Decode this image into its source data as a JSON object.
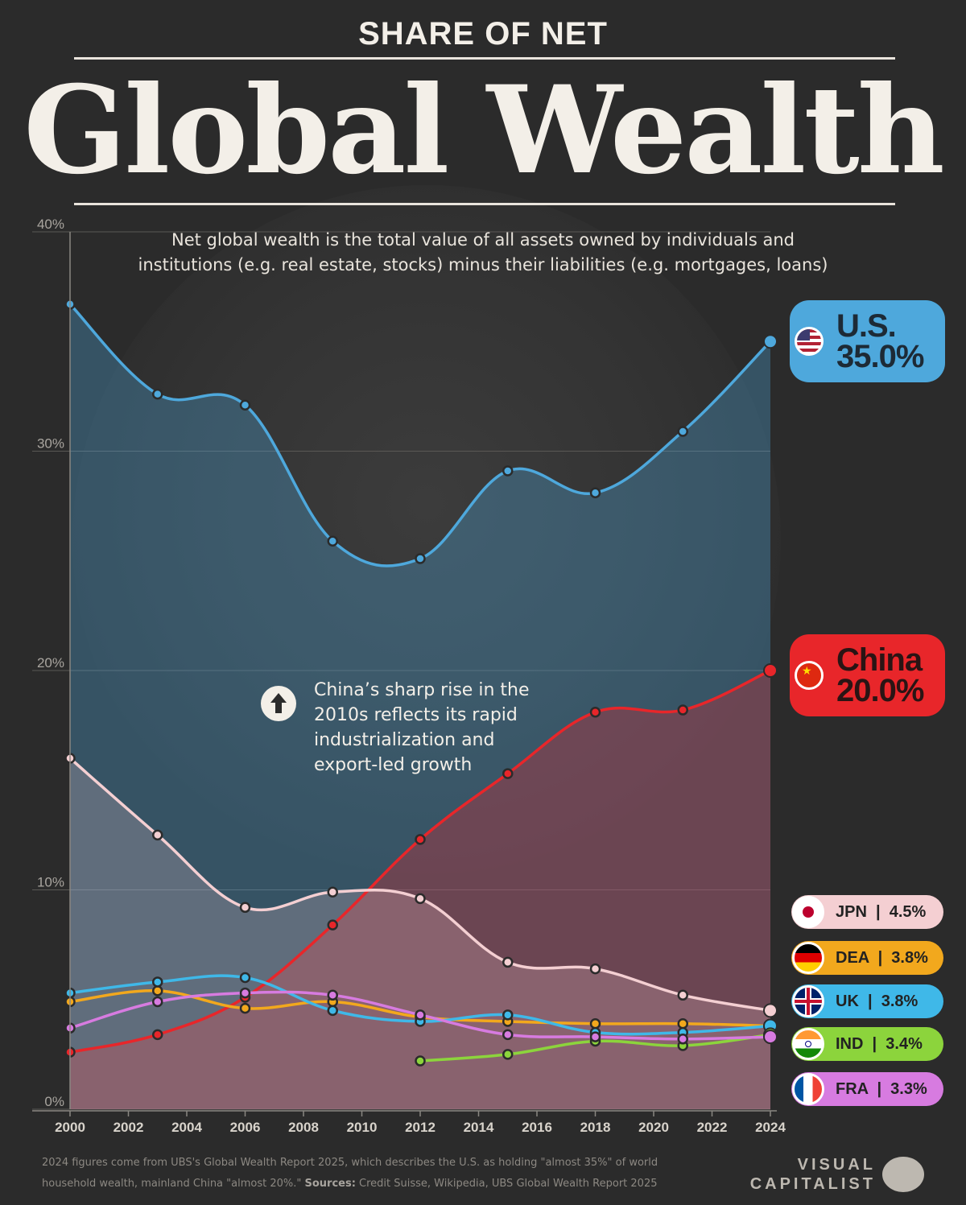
{
  "header": {
    "kicker": "SHARE OF NET",
    "title": "Global Wealth",
    "subtitle_line1": "Net global wealth is the total value of all assets owned by individuals and",
    "subtitle_line2": "institutions (e.g. real estate, stocks) minus their liabilities (e.g. mortgages, loans)"
  },
  "annotation": {
    "line1": "China’s sharp rise in the",
    "line2": "2010s reflects its rapid",
    "line3": "industrialization and",
    "line4": "export-led growth",
    "icon": "arrow-up-icon"
  },
  "labels": {
    "us_name": "U.S.",
    "us_value": "35.0%",
    "china_name": "China",
    "china_value": "20.0%",
    "jpn": "JPN  |  4.5%",
    "dea": "DEA  |  3.8%",
    "uk": "UK  |  3.8%",
    "ind": "IND  |  3.4%",
    "fra": "FRA  |  3.3%"
  },
  "footer": {
    "note": "2024 figures come from UBS's Global Wealth Report 2025, which describes the U.S. as holding \"almost 35%\" of world household wealth, mainland China \"almost 20%.\"",
    "sources_label": "Sources:",
    "sources": "Credit Suisse, Wikipedia, UBS Global Wealth Report 2025",
    "logo_line1": "VISUAL",
    "logo_line2": "CAPITALIST"
  },
  "chart_data": {
    "type": "line",
    "ylim": [
      0,
      40
    ],
    "yticks": [
      0,
      10,
      20,
      30,
      40
    ],
    "ytick_labels": [
      "0%",
      "10%",
      "20%",
      "30%",
      "40%"
    ],
    "xlim": [
      2000,
      2024
    ],
    "xticks": [
      2000,
      2002,
      2004,
      2006,
      2008,
      2010,
      2012,
      2014,
      2016,
      2018,
      2020,
      2022,
      2024
    ],
    "series": [
      {
        "name": "U.S.",
        "color": "#4ea8dc",
        "x": [
          2000,
          2003,
          2006,
          2009,
          2012,
          2015,
          2018,
          2021,
          2024
        ],
        "values": [
          36.7,
          32.6,
          32.1,
          25.9,
          25.1,
          29.1,
          28.1,
          30.9,
          35.0
        ]
      },
      {
        "name": "China",
        "color": "#e8262a",
        "x": [
          2000,
          2003,
          2006,
          2009,
          2012,
          2015,
          2018,
          2021,
          2024
        ],
        "values": [
          2.6,
          3.4,
          5.1,
          8.4,
          12.3,
          15.3,
          18.1,
          18.2,
          20.0
        ]
      },
      {
        "name": "JPN",
        "color": "#f4cfd2",
        "x": [
          2000,
          2003,
          2006,
          2009,
          2012,
          2015,
          2018,
          2021,
          2024
        ],
        "values": [
          16.0,
          12.5,
          9.2,
          9.9,
          9.6,
          6.7,
          6.4,
          5.2,
          4.5
        ]
      },
      {
        "name": "DEA",
        "color": "#f2a81d",
        "x": [
          2000,
          2003,
          2006,
          2009,
          2012,
          2015,
          2018,
          2021,
          2024
        ],
        "values": [
          4.9,
          5.4,
          4.6,
          4.9,
          4.2,
          4.0,
          3.9,
          3.9,
          3.8
        ]
      },
      {
        "name": "UK",
        "color": "#3fb8e8",
        "x": [
          2000,
          2003,
          2006,
          2009,
          2012,
          2015,
          2018,
          2021,
          2024
        ],
        "values": [
          5.3,
          5.8,
          6.0,
          4.5,
          4.0,
          4.3,
          3.5,
          3.5,
          3.8
        ]
      },
      {
        "name": "IND",
        "color": "#8cd43c",
        "x": [
          2012,
          2015,
          2018,
          2021,
          2024
        ],
        "values": [
          2.2,
          2.5,
          3.1,
          2.9,
          3.4
        ]
      },
      {
        "name": "FRA",
        "color": "#d77be0",
        "x": [
          2000,
          2003,
          2006,
          2009,
          2012,
          2015,
          2018,
          2021,
          2024
        ],
        "values": [
          3.7,
          4.9,
          5.3,
          5.2,
          4.3,
          3.4,
          3.3,
          3.2,
          3.3
        ]
      }
    ]
  }
}
